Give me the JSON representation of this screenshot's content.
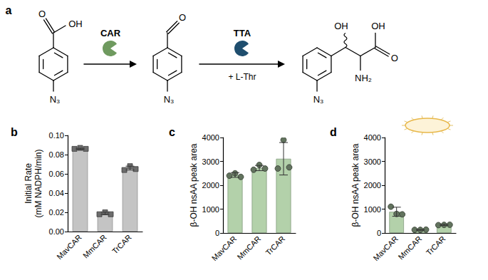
{
  "scheme": {
    "panel": "a",
    "step1_enzyme": "CAR",
    "step2_enzyme": "TTA",
    "step2_cosubstrate": "+ L-Thr",
    "substrate": {
      "acid_o": "O",
      "acid_oh": "OH",
      "azide": "N₃"
    },
    "intermediate": {
      "aldehyde_o": "O",
      "azide": "N₃"
    },
    "product": {
      "beta": "OH",
      "acid_o": "O",
      "acid_oh": "OH",
      "amine": "NH₂",
      "azide": "N₃"
    }
  },
  "chart_data": [
    {
      "type": "bar",
      "panel": "b",
      "ylabel": "Initial Rate\n(mM NADPH/min)",
      "categories": [
        "MavCAR",
        "MmCAR",
        "TrCAR"
      ],
      "values": [
        0.086,
        0.019,
        0.066
      ],
      "errors": [
        0.0006,
        0.0012,
        0.002
      ],
      "points": [
        [
          0.086,
          0.087,
          0.086
        ],
        [
          0.018,
          0.02,
          0.018
        ],
        [
          0.064,
          0.068,
          0.065
        ]
      ],
      "color": "#c4c4c4",
      "marker": "square",
      "grid": false,
      "ylim": [
        0,
        0.1
      ],
      "yticks": [
        {
          "value": 0,
          "label": "0.00"
        },
        {
          "value": 0.02,
          "label": "0.02"
        },
        {
          "value": 0.04,
          "label": "0.04"
        },
        {
          "value": 0.06,
          "label": "0.06"
        },
        {
          "value": 0.08,
          "label": "0.08"
        },
        {
          "value": 0.1,
          "label": "0.10"
        }
      ]
    },
    {
      "type": "bar",
      "panel": "c",
      "ylabel": "β-OH nsAA peak area",
      "categories": [
        "MavCAR",
        "MmCAR",
        "TrCAR"
      ],
      "values": [
        2430,
        2720,
        3110
      ],
      "errors": [
        100,
        110,
        680
      ],
      "points": [
        [
          2400,
          2500,
          2350
        ],
        [
          2650,
          2850,
          2700
        ],
        [
          2700,
          3900,
          2750
        ]
      ],
      "color": "#b3d1aa",
      "marker": "circle",
      "grid": false,
      "ylim": [
        0,
        4000
      ],
      "yticks": [
        0,
        1000,
        2000,
        3000,
        4000
      ]
    },
    {
      "type": "bar",
      "panel": "d",
      "ylabel": "β-OH nsAA peak area",
      "categories": [
        "MavCAR",
        "MmCAR",
        "TrCAR"
      ],
      "values": [
        890,
        130,
        340
      ],
      "errors": [
        190,
        15,
        25
      ],
      "points": [
        [
          1100,
          800,
          780
        ],
        [
          130,
          130,
          140
        ],
        [
          330,
          340,
          345
        ]
      ],
      "color": "#b3d1aa",
      "marker": "circle",
      "grid": false,
      "ylim": [
        0,
        4000
      ],
      "yticks": [
        0,
        1000,
        2000,
        3000,
        4000
      ]
    }
  ]
}
